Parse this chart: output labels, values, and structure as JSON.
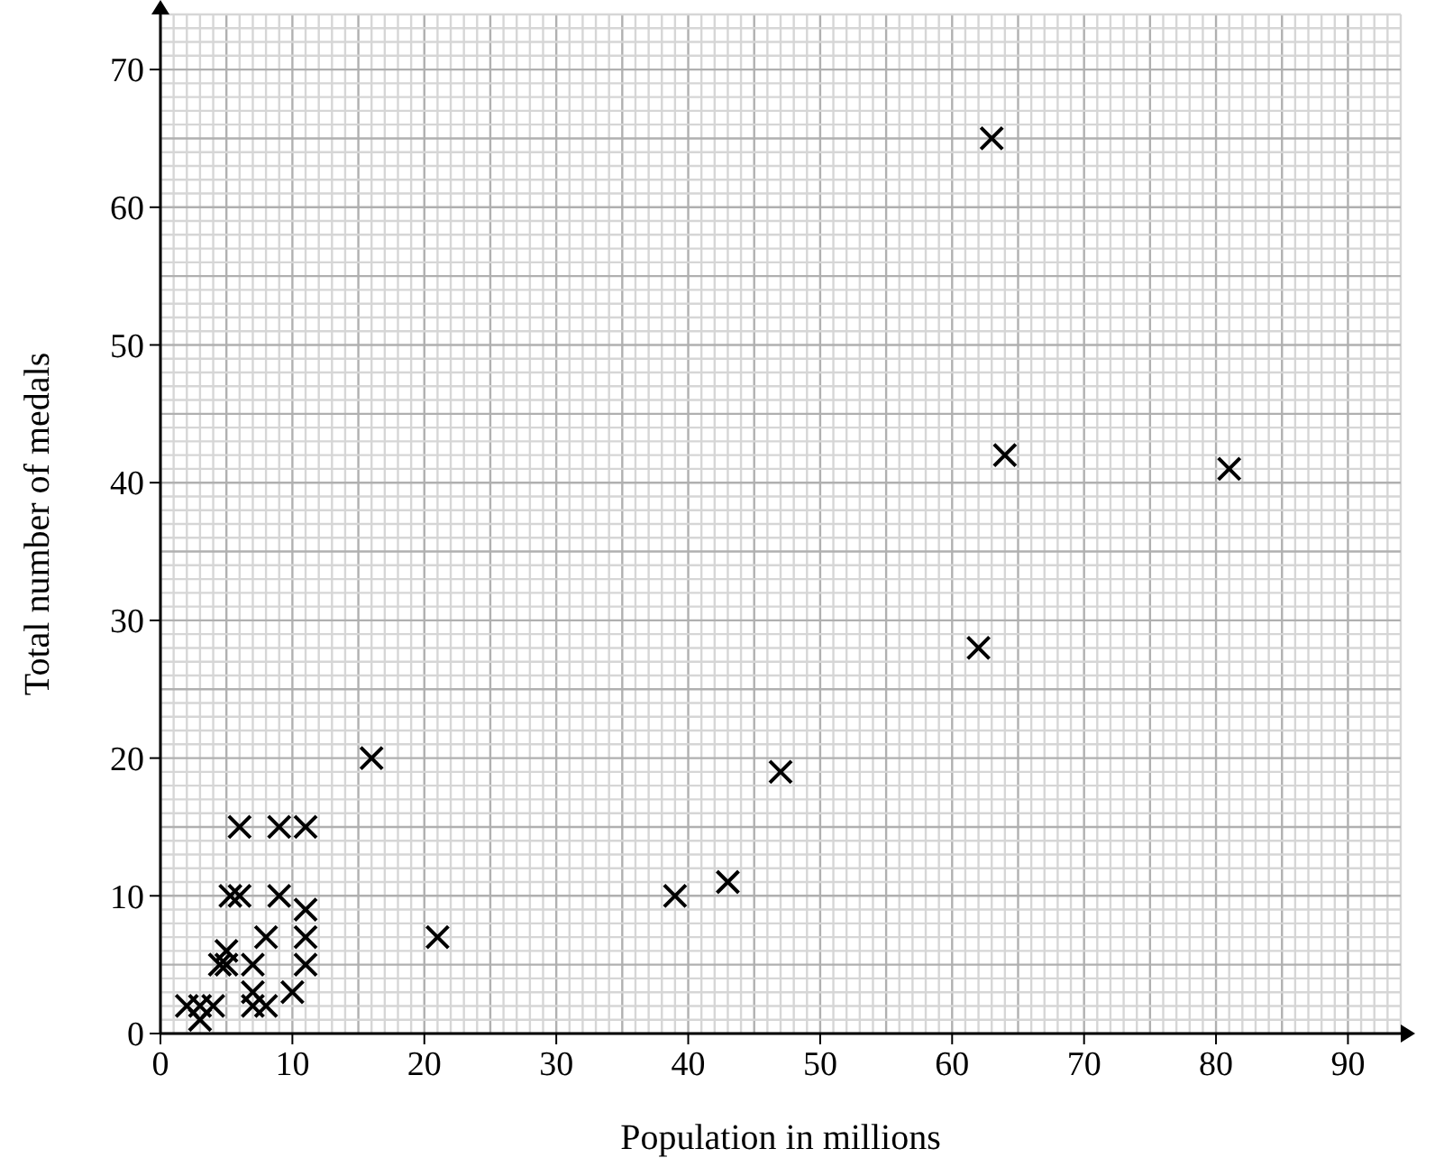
{
  "chart_data": {
    "type": "scatter",
    "xlabel": "Population in millions",
    "ylabel": "Total number of medals",
    "x": [
      2,
      3,
      3,
      4,
      4.5,
      5,
      5,
      5.3,
      6,
      6,
      7,
      7,
      7,
      8,
      8,
      9,
      9,
      10,
      11,
      11,
      11,
      11,
      16,
      21,
      39,
      43,
      47,
      62,
      63,
      64,
      81
    ],
    "series": [
      {
        "color": "#000000",
        "values": [
          2,
          2,
          1,
          2,
          5,
          6,
          5,
          10,
          10,
          15,
          2,
          3,
          5,
          2,
          7,
          10,
          15,
          3,
          9,
          7,
          5,
          15,
          20,
          7,
          10,
          11,
          19,
          28,
          65,
          42,
          41
        ]
      }
    ],
    "xlim": [
      0,
      94
    ],
    "ylim": [
      0,
      74
    ],
    "xticks": [
      0,
      10,
      20,
      30,
      40,
      50,
      60,
      70,
      80,
      90
    ],
    "yticks": [
      0,
      10,
      20,
      30,
      40,
      50,
      60,
      70
    ],
    "grid": true,
    "marker": "cross"
  }
}
